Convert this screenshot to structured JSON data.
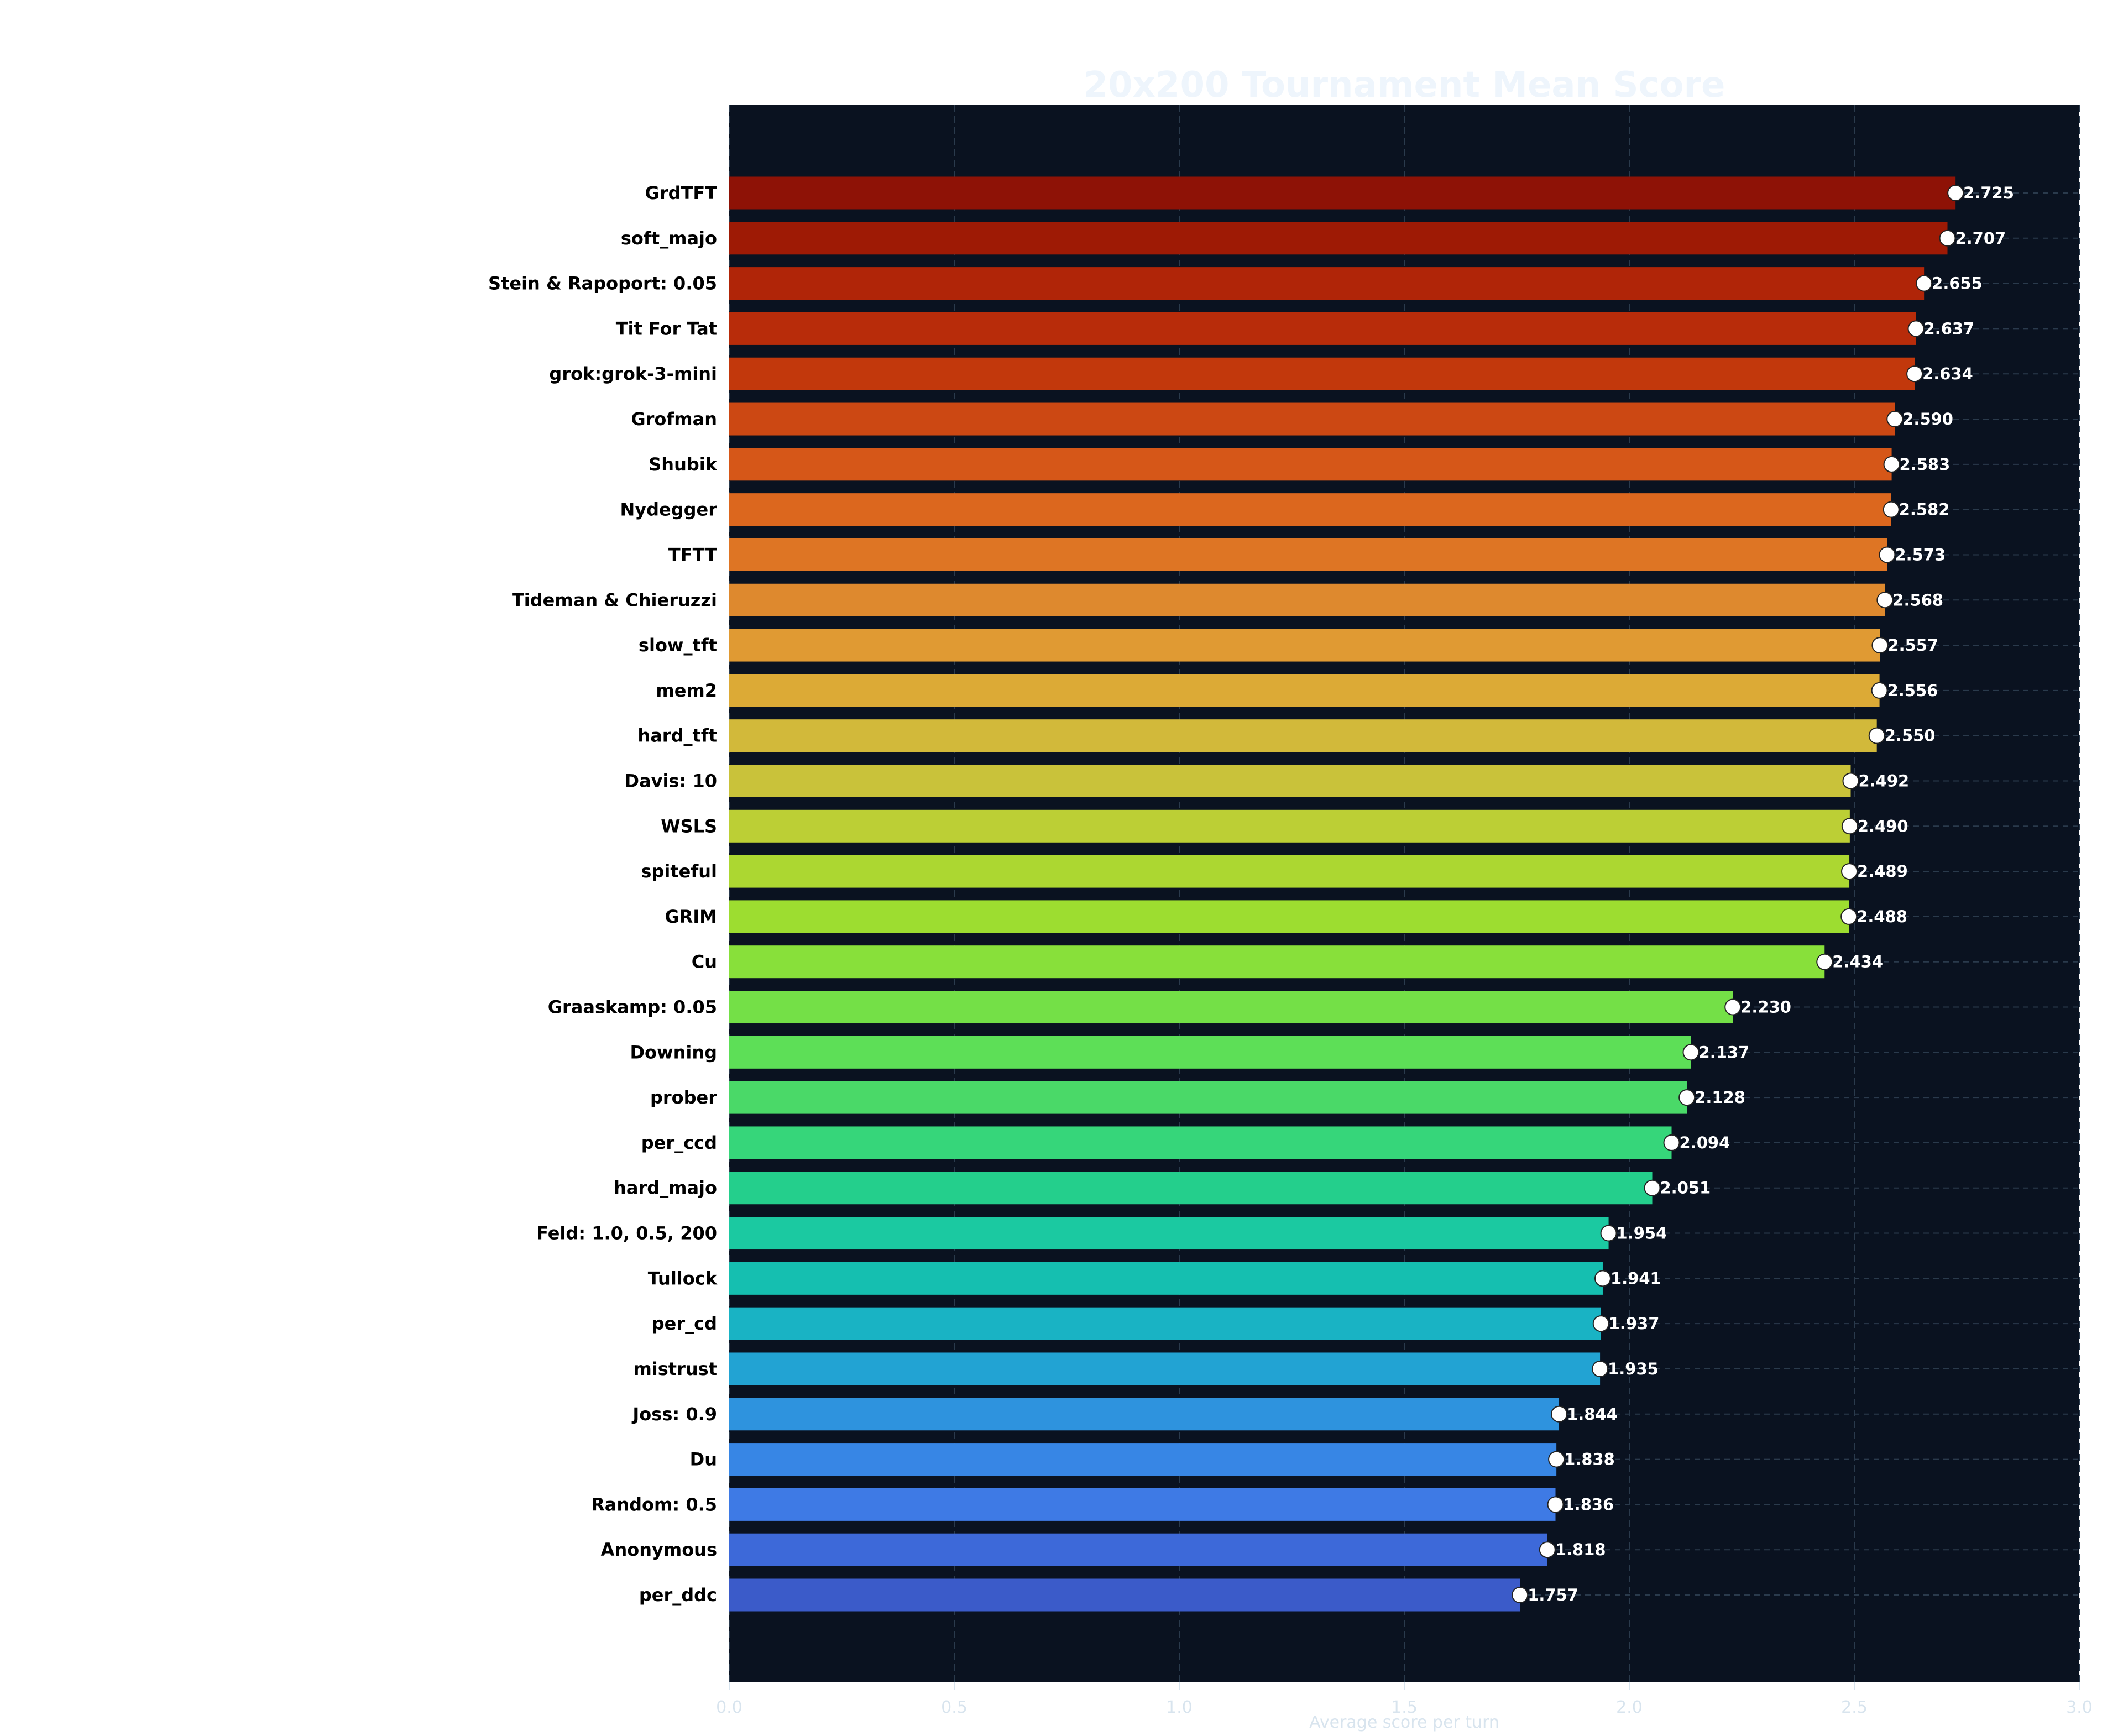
{
  "chart_data": {
    "type": "bar",
    "orientation": "horizontal",
    "title": "20x200 Tournament Mean Score",
    "xlabel": "Average score per turn",
    "ylabel": "",
    "xlim": [
      0,
      3.0
    ],
    "xticks": [
      "0.0",
      "0.5",
      "1.0",
      "1.5",
      "2.0",
      "2.5",
      "3.0"
    ],
    "grid": true,
    "background": "#0a1220",
    "categories": [
      "GrdTFT",
      "soft_majo",
      "Stein & Rapoport: 0.05",
      "Tit For Tat",
      "grok:grok-3-mini",
      "Grofman",
      "Shubik",
      "Nydegger",
      "TFTT",
      "Tideman & Chieruzzi",
      "slow_tft",
      "mem2",
      "hard_tft",
      "Davis: 10",
      "WSLS",
      "spiteful",
      "GRIM",
      "Cu",
      "Graaskamp: 0.05",
      "Downing",
      "prober",
      "per_ccd",
      "hard_majo",
      "Feld: 1.0, 0.5, 200",
      "Tullock",
      "per_cd",
      "mistrust",
      "Joss: 0.9",
      "Du",
      "Random: 0.5",
      "Anonymous",
      "per_ddc"
    ],
    "values": [
      2.725,
      2.707,
      2.655,
      2.637,
      2.634,
      2.59,
      2.583,
      2.582,
      2.573,
      2.568,
      2.557,
      2.556,
      2.55,
      2.492,
      2.49,
      2.489,
      2.488,
      2.434,
      2.23,
      2.137,
      2.128,
      2.094,
      2.051,
      1.954,
      1.941,
      1.937,
      1.935,
      1.844,
      1.838,
      1.836,
      1.818,
      1.757
    ],
    "value_labels": [
      "2.725",
      "2.707",
      "2.655",
      "2.637",
      "2.634",
      "2.590",
      "2.583",
      "2.582",
      "2.573",
      "2.568",
      "2.557",
      "2.556",
      "2.550",
      "2.492",
      "2.490",
      "2.489",
      "2.488",
      "2.434",
      "2.230",
      "2.137",
      "2.128",
      "2.094",
      "2.051",
      "1.954",
      "1.941",
      "1.937",
      "1.935",
      "1.844",
      "1.838",
      "1.836",
      "1.818",
      "1.757"
    ],
    "colors": [
      "#8e1206",
      "#9e1a05",
      "#b02508",
      "#b82c0a",
      "#c2380c",
      "#cc4813",
      "#d65718",
      "#dc671e",
      "#de7524",
      "#de892e",
      "#e09a33",
      "#dcaa36",
      "#d2b93a",
      "#c9c23a",
      "#bccf35",
      "#acd731",
      "#9ddd30",
      "#88e03a",
      "#74e047",
      "#5ddf57",
      "#4ad968",
      "#36d67a",
      "#24cf8c",
      "#1bc9a1",
      "#15bfb0",
      "#19b3c4",
      "#22a3d3",
      "#2e93de",
      "#3786e5",
      "#3e7ae5",
      "#3d69d9",
      "#3b5bc9"
    ]
  }
}
